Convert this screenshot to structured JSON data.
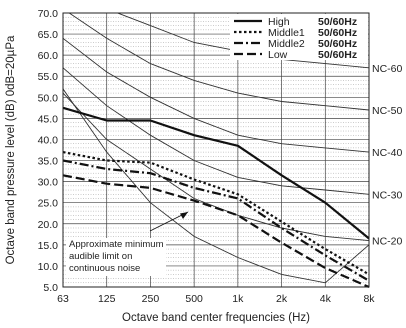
{
  "chart_data": {
    "type": "line",
    "xlabel": "Octave band center frequencies (Hz)",
    "ylabel": "Octave band pressure level (dB) 0dB=20µPa",
    "categories": [
      "63",
      "125",
      "250",
      "500",
      "1k",
      "2k",
      "4k",
      "8k"
    ],
    "y_ticks": [
      "5.0",
      "10.0",
      "15.0",
      "20.0",
      "25.0",
      "30.0",
      "35.0",
      "40.0",
      "45.0",
      "50.0",
      "55.0",
      "60.0",
      "65.0",
      "70.0"
    ],
    "ylim": [
      5,
      70
    ],
    "series": [
      {
        "name": "High",
        "hz": "50/60Hz",
        "style": "solid",
        "values": [
          47.5,
          44.5,
          44.5,
          41.0,
          38.5,
          31.5,
          25.0,
          16.5
        ]
      },
      {
        "name": "Middle1",
        "hz": "50/60Hz",
        "style": "dot",
        "values": [
          37.0,
          35.0,
          34.5,
          30.5,
          27.0,
          20.5,
          14.0,
          8.0
        ]
      },
      {
        "name": "Middle2",
        "hz": "50/60Hz",
        "style": "dashdot",
        "values": [
          35.0,
          33.0,
          32.0,
          28.5,
          26.0,
          19.0,
          12.5,
          6.5
        ]
      },
      {
        "name": "Low",
        "hz": "50/60Hz",
        "style": "dash",
        "values": [
          31.5,
          29.5,
          28.5,
          25.5,
          22.0,
          15.5,
          9.5,
          5.0
        ]
      }
    ],
    "nc_curves": [
      {
        "label": "NC-60",
        "values": [
          77,
          71,
          67,
          63,
          61,
          59,
          58,
          57
        ]
      },
      {
        "label": "NC-50",
        "values": [
          71,
          64,
          58,
          54,
          51,
          49,
          48,
          47
        ]
      },
      {
        "label": "NC-40",
        "values": [
          64,
          56,
          50,
          45,
          41,
          39,
          38,
          37
        ]
      },
      {
        "label": "NC-30",
        "values": [
          57,
          48,
          41,
          35,
          31,
          29,
          28,
          27
        ]
      },
      {
        "label": "NC-20",
        "values": [
          51,
          40,
          33,
          26,
          22,
          19,
          17,
          16
        ]
      }
    ],
    "threshold_curve": {
      "values": [
        52,
        37,
        25,
        17,
        12,
        8,
        6,
        15
      ]
    },
    "annotation": {
      "lines": [
        "Approximate minimum",
        "audible limit on",
        "continuous noise"
      ]
    },
    "grid": true,
    "legend_position": "top-right"
  }
}
